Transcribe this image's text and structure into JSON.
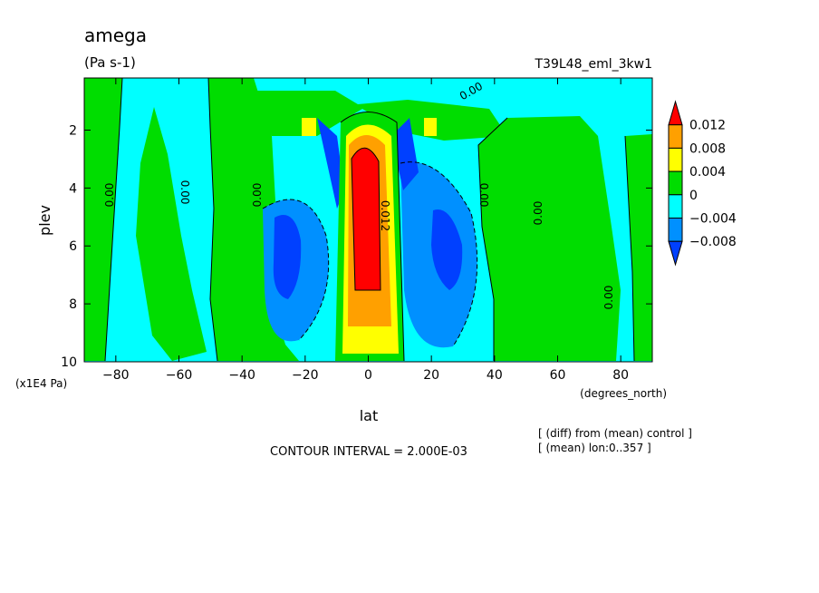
{
  "chart_data": {
    "type": "contour",
    "title": "amega",
    "units": "(Pa s-1)",
    "run_id": "T39L48_eml_3kw1",
    "xlabel": "lat",
    "x_units": "(degrees_north)",
    "ylabel": "plev",
    "y_units": "(x1E4 Pa)",
    "x_ticks": [
      -80,
      -60,
      -40,
      -20,
      0,
      20,
      40,
      60,
      80
    ],
    "y_ticks": [
      2,
      4,
      6,
      8,
      10
    ],
    "xlim": [
      -90,
      90
    ],
    "ylim": [
      0.2,
      10
    ],
    "contour_interval_text": "CONTOUR INTERVAL = 2.000E-03",
    "notes": [
      "[ (diff) from (mean) control ]",
      "[ (mean) lon:0..357 ]"
    ],
    "contour_labels": [
      "0.00",
      "0.00",
      "0.00",
      "0.00",
      "0.00",
      "0.00",
      "0.00",
      "0.012"
    ],
    "colorbar": {
      "levels": [
        "0.012",
        "0.008",
        "0.004",
        "0",
        "−0.004",
        "−0.008"
      ],
      "colors": [
        "#ff0000",
        "#ffa000",
        "#ffff00",
        "#00dd00",
        "#00ffff",
        "#0090ff",
        "#0040ff"
      ]
    }
  }
}
